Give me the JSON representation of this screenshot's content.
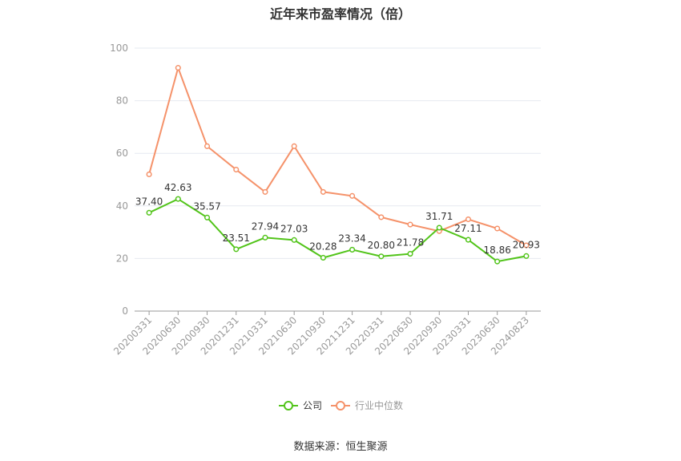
{
  "chart_data": {
    "type": "line",
    "title": "近年来市盈率情况（倍）",
    "source": "数据来源：恒生聚源",
    "x": [
      "20200331",
      "20200630",
      "20200930",
      "20201231",
      "20210331",
      "20210630",
      "20210930",
      "20211231",
      "20220331",
      "20220630",
      "20220930",
      "20230331",
      "20230630",
      "20240823"
    ],
    "ylim": [
      0,
      100
    ],
    "yticks": [
      0,
      20,
      40,
      60,
      80,
      100
    ],
    "grid": true,
    "legend_position": "bottom",
    "series": [
      {
        "name": "公司",
        "color": "#52c41a",
        "values": [
          37.4,
          42.63,
          35.57,
          23.51,
          27.94,
          27.03,
          20.28,
          23.34,
          20.8,
          21.78,
          31.71,
          27.11,
          18.86,
          20.93
        ],
        "labels": [
          "37.40",
          "42.63",
          "35.57",
          "23.51",
          "27.94",
          "27.03",
          "20.28",
          "23.34",
          "20.80",
          "21.78",
          "31.71",
          "27.11",
          "18.86",
          "20.93"
        ]
      },
      {
        "name": "行业中位数",
        "color": "#f5926a",
        "values": [
          52.0,
          92.5,
          62.7,
          53.8,
          45.3,
          62.7,
          45.3,
          43.8,
          35.7,
          32.9,
          30.4,
          34.9,
          31.4,
          25.0
        ]
      }
    ]
  }
}
